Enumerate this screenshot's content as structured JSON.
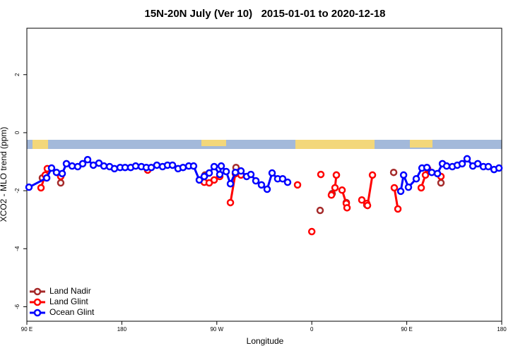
{
  "chart_data": {
    "type": "line",
    "title": "15N-20N July (Ver 10)   2015-01-01 to 2020-12-18",
    "x_label": "Longitude",
    "y_label": "XCO2 - MLO trend (ppm)",
    "xlim": [
      90,
      540
    ],
    "ylim": [
      -6.5,
      3.6
    ],
    "xticks": [
      {
        "value": 90,
        "label": "90 E"
      },
      180,
      {
        "value": 270,
        "label": "90 W"
      },
      {
        "value": 360,
        "label": "0"
      },
      {
        "value": 450,
        "label": "90 E"
      },
      {
        "value": 540,
        "label": "180"
      }
    ],
    "yticks": [
      -6,
      -4,
      -2,
      0,
      2
    ],
    "legend": "bottom-left",
    "series": [
      {
        "name": "Land Nadir",
        "color": "#a52a2a",
        "x": [
          104.7,
          null,
          122.1,
          null,
          258.8,
          null,
          288.2,
          null,
          367.9,
          null,
          379.3,
          null,
          383.3,
          null,
          392.7,
          null,
          412.1,
          null,
          437.6,
          null,
          469.1,
          null,
          482.4
        ],
        "values": [
          -1.56,
          null,
          -1.73,
          null,
          -1.46,
          null,
          -1.2,
          null,
          -2.68,
          null,
          -2.1,
          null,
          -1.46,
          null,
          -2.41,
          null,
          -2.49,
          null,
          -1.37,
          null,
          -1.22,
          null,
          -1.73
        ]
      },
      {
        "name": "Land Glint",
        "color": "#ff0000",
        "x": [
          103.4,
          107.4,
          109.4,
          null,
          122.1,
          null,
          204.5,
          null,
          258.1,
          262.8,
          267.5,
          272.8,
          null,
          282.9,
          287.6,
          292.9,
          null,
          346.5,
          null,
          360,
          null,
          368.6,
          null,
          378.6,
          382,
          383.3,
          null,
          388.7,
          392.7,
          393.4,
          null,
          407.4,
          412.1,
          412.8,
          417.5,
          null,
          438.2,
          441.6,
          null,
          463.7,
          467.7,
          469.7,
          null,
          482.4
        ],
        "values": [
          -1.9,
          -1.46,
          -1.24,
          null,
          -1.51,
          null,
          -1.29,
          null,
          -1.71,
          -1.73,
          -1.63,
          -1.51,
          null,
          -2.41,
          -1.41,
          -1.46,
          null,
          -1.8,
          null,
          -3.41,
          null,
          -1.44,
          null,
          -2.15,
          -1.9,
          -1.46,
          null,
          -1.98,
          -2.44,
          -2.59,
          null,
          -2.32,
          -2.44,
          -2.51,
          -1.46,
          null,
          -1.9,
          -2.63,
          null,
          -1.9,
          -1.46,
          -1.24,
          null,
          -1.51
        ]
      },
      {
        "name": "Ocean Glint",
        "color": "#0000ff",
        "x": [
          92,
          108.8,
          113.4,
          118.1,
          123.5,
          127.5,
          132.9,
          138.2,
          142.9,
          147.6,
          153,
          158.3,
          163,
          168.4,
          173,
          178.4,
          183.1,
          188.4,
          193.1,
          198.5,
          203.2,
          207.9,
          213.2,
          218.6,
          223.3,
          228,
          233.3,
          238,
          243.4,
          248,
          253.4,
          258.1,
          262.8,
          267.5,
          272.8,
          274.2,
          278.9,
          282.9,
          287.6,
          292.9,
          298.3,
          302.3,
          307,
          312.3,
          317.7,
          322.4,
          327.7,
          332.4,
          337.1,
          null,
          444.3,
          447,
          451.6,
          459,
          464.4,
          469.1,
          473.7,
          479.1,
          483.8,
          487.8,
          493.2,
          497.9,
          502.5,
          507.2,
          512.6,
          517.3,
          522.6,
          527.3,
          532.7,
          537.4
        ],
        "values": [
          -1.88,
          -1.56,
          -1.22,
          -1.37,
          -1.41,
          -1.07,
          -1.15,
          -1.17,
          -1.07,
          -0.93,
          -1.12,
          -1.05,
          -1.15,
          -1.17,
          -1.24,
          -1.2,
          -1.2,
          -1.2,
          -1.15,
          -1.17,
          -1.2,
          -1.2,
          -1.12,
          -1.17,
          -1.12,
          -1.12,
          -1.24,
          -1.2,
          -1.15,
          -1.15,
          -1.63,
          -1.51,
          -1.39,
          -1.17,
          -1.44,
          -1.15,
          -1.34,
          -1.76,
          -1.37,
          -1.32,
          -1.51,
          -1.44,
          -1.66,
          -1.8,
          -1.95,
          -1.39,
          -1.59,
          -1.59,
          -1.71,
          null,
          -2.02,
          -1.46,
          -1.88,
          -1.59,
          -1.22,
          -1.2,
          -1.37,
          -1.41,
          -1.07,
          -1.15,
          -1.17,
          -1.12,
          -1.07,
          -0.9,
          -1.15,
          -1.07,
          -1.17,
          -1.17,
          -1.27,
          -1.22
        ]
      }
    ]
  }
}
